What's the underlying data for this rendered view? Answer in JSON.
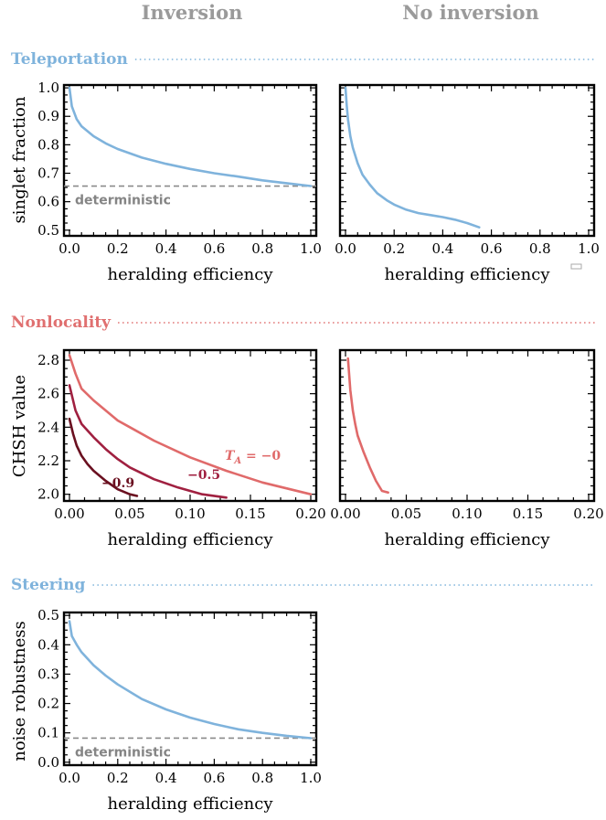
{
  "columns": {
    "left": "Inversion",
    "right": "No inversion"
  },
  "sections": {
    "teleportation": {
      "title": "Teleportation",
      "color": "#7fb3dc"
    },
    "nonlocality": {
      "title": "Nonlocality",
      "color": "#e07070"
    },
    "steering": {
      "title": "Steering",
      "color": "#7fb3dc"
    }
  },
  "chart_data": [
    {
      "id": "tele_inv",
      "type": "line",
      "xlabel": "heralding efficiency",
      "ylabel": "singlet fraction",
      "xlim": [
        0,
        1
      ],
      "ylim": [
        0.48,
        1.01
      ],
      "xticks": [
        "0.0",
        "0.2",
        "0.4",
        "0.6",
        "0.8",
        "1.0"
      ],
      "yticks": [
        "0.5",
        "0.6",
        "0.7",
        "0.8",
        "0.9",
        "1.0"
      ],
      "series": [
        {
          "color": "#7fb3dc",
          "x": [
            0,
            0.01,
            0.03,
            0.05,
            0.1,
            0.15,
            0.2,
            0.3,
            0.4,
            0.5,
            0.6,
            0.7,
            0.8,
            0.9,
            1.0
          ],
          "y": [
            1.0,
            0.935,
            0.89,
            0.865,
            0.83,
            0.805,
            0.785,
            0.755,
            0.733,
            0.715,
            0.7,
            0.688,
            0.675,
            0.665,
            0.655
          ]
        }
      ],
      "hline": {
        "y": 0.655,
        "label": "deterministic",
        "color": "#8a8a8a"
      }
    },
    {
      "id": "tele_noinv",
      "type": "line",
      "xlabel": "heralding efficiency",
      "ylabel": "",
      "xlim": [
        0,
        1
      ],
      "ylim": [
        0.48,
        1.01
      ],
      "xticks": [
        "0.0",
        "0.2",
        "0.4",
        "0.6",
        "0.8",
        "1.0"
      ],
      "yticks": [],
      "series": [
        {
          "color": "#7fb3dc",
          "x": [
            0,
            0.005,
            0.01,
            0.02,
            0.03,
            0.05,
            0.07,
            0.1,
            0.13,
            0.17,
            0.2,
            0.25,
            0.3,
            0.35,
            0.4,
            0.45,
            0.5,
            0.55
          ],
          "y": [
            1.0,
            0.94,
            0.89,
            0.83,
            0.79,
            0.735,
            0.695,
            0.66,
            0.63,
            0.605,
            0.59,
            0.572,
            0.56,
            0.553,
            0.546,
            0.537,
            0.525,
            0.51
          ]
        }
      ]
    },
    {
      "id": "nonloc_inv",
      "type": "line",
      "xlabel": "heralding efficiency",
      "ylabel": "CHSH value",
      "xlim": [
        0,
        0.2
      ],
      "ylim": [
        1.96,
        2.86
      ],
      "xticks": [
        "0.00",
        "0.05",
        "0.10",
        "0.15",
        "0.20"
      ],
      "yticks": [
        "2.0",
        "2.2",
        "2.4",
        "2.6",
        "2.8"
      ],
      "series": [
        {
          "name": "−0",
          "color": "#e06a6a",
          "x": [
            0,
            0.005,
            0.01,
            0.02,
            0.03,
            0.04,
            0.05,
            0.07,
            0.1,
            0.13,
            0.16,
            0.2
          ],
          "y": [
            2.83,
            2.72,
            2.63,
            2.56,
            2.5,
            2.44,
            2.4,
            2.32,
            2.22,
            2.14,
            2.07,
            2.0
          ]
        },
        {
          "name": "−0.5",
          "color": "#a02040",
          "x": [
            0,
            0.005,
            0.01,
            0.02,
            0.03,
            0.04,
            0.05,
            0.07,
            0.09,
            0.11,
            0.13
          ],
          "y": [
            2.65,
            2.5,
            2.42,
            2.34,
            2.27,
            2.21,
            2.16,
            2.09,
            2.04,
            2.0,
            1.98
          ]
        },
        {
          "name": "−0.9",
          "color": "#6a1020",
          "x": [
            0,
            0.003,
            0.006,
            0.01,
            0.015,
            0.02,
            0.03,
            0.04,
            0.05,
            0.056
          ],
          "y": [
            2.45,
            2.36,
            2.29,
            2.23,
            2.18,
            2.14,
            2.08,
            2.03,
            2.0,
            1.99
          ]
        }
      ],
      "series_label_prefix": "T",
      "series_label_subscript": "A",
      "series_label_equals": " = "
    },
    {
      "id": "nonloc_noinv",
      "type": "line",
      "xlabel": "heralding efficiency",
      "ylabel": "",
      "xlim": [
        0,
        0.2
      ],
      "ylim": [
        1.96,
        2.86
      ],
      "xticks": [
        "0.00",
        "0.05",
        "0.10",
        "0.15",
        "0.20"
      ],
      "yticks": [],
      "series": [
        {
          "color": "#e06a6a",
          "x": [
            0.002,
            0.004,
            0.006,
            0.008,
            0.01,
            0.015,
            0.02,
            0.025,
            0.03,
            0.035
          ],
          "y": [
            2.81,
            2.62,
            2.5,
            2.42,
            2.35,
            2.25,
            2.16,
            2.08,
            2.02,
            2.01
          ]
        }
      ]
    },
    {
      "id": "steer_inv",
      "type": "line",
      "xlabel": "heralding efficiency",
      "ylabel": "noise robustness",
      "xlim": [
        0,
        1
      ],
      "ylim": [
        -0.01,
        0.51
      ],
      "xticks": [
        "0.0",
        "0.2",
        "0.4",
        "0.6",
        "0.8",
        "1.0"
      ],
      "yticks": [
        "0.0",
        "0.1",
        "0.2",
        "0.3",
        "0.4",
        "0.5"
      ],
      "series": [
        {
          "color": "#7fb3dc",
          "x": [
            0,
            0.01,
            0.03,
            0.05,
            0.1,
            0.15,
            0.2,
            0.3,
            0.4,
            0.5,
            0.6,
            0.7,
            0.8,
            0.9,
            1.0
          ],
          "y": [
            0.48,
            0.43,
            0.4,
            0.375,
            0.33,
            0.295,
            0.265,
            0.215,
            0.18,
            0.152,
            0.13,
            0.112,
            0.1,
            0.09,
            0.082
          ]
        }
      ],
      "hline": {
        "y": 0.082,
        "label": "deterministic",
        "color": "#8a8a8a"
      }
    }
  ]
}
